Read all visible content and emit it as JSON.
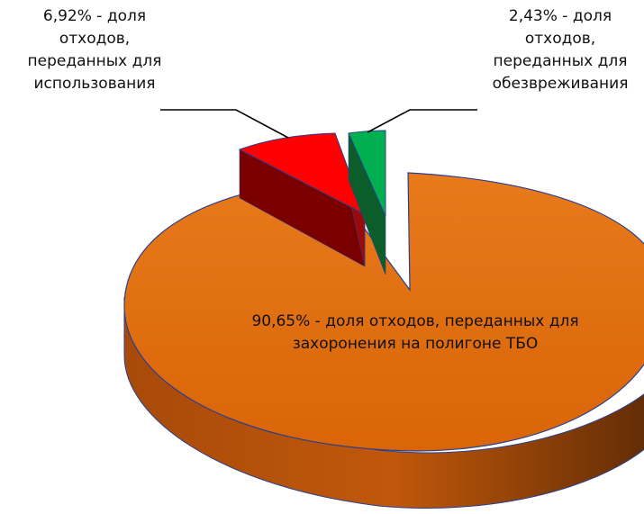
{
  "chart_data": {
    "type": "pie",
    "slices": [
      {
        "value": 90.65,
        "label_lines": [
          "90,65% - доля отходов, переданных для",
          "захоронения на полигоне ТБО"
        ],
        "color": "#E36C09"
      },
      {
        "value": 6.92,
        "label_lines": [
          "6,92% - доля",
          "отходов,",
          "переданных для",
          "использования"
        ],
        "color": "#FF0000"
      },
      {
        "value": 2.43,
        "label_lines": [
          "2,43% - доля",
          "отходов,",
          "переданных для",
          "обезвреживания"
        ],
        "color": "#00B050"
      }
    ]
  }
}
